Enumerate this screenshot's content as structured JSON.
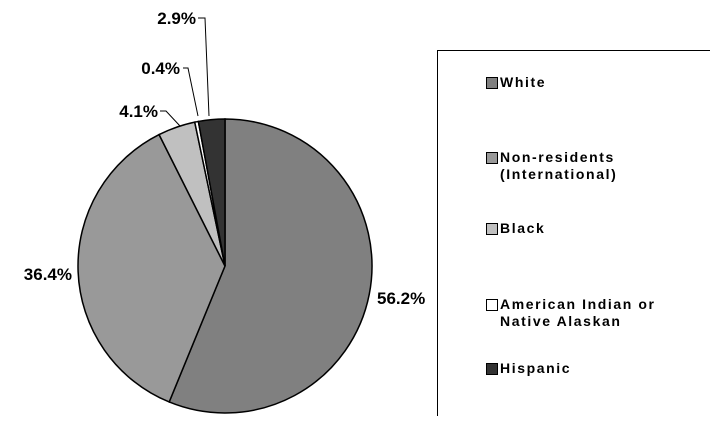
{
  "chart_data": {
    "type": "pie",
    "title": "",
    "start_angle_deg": 0,
    "direction": "clockwise",
    "slices": [
      {
        "label": "White",
        "value": 56.2,
        "display": "56.2%",
        "color": "#808080"
      },
      {
        "label": "Non-residents\n(International)",
        "value": 36.4,
        "display": "36.4%",
        "color": "#999999"
      },
      {
        "label": "Black",
        "value": 4.1,
        "display": "4.1%",
        "color": "#c0c0c0"
      },
      {
        "label": "American Indian or\nNative Alaskan",
        "value": 0.4,
        "display": "0.4%",
        "color": "#ffffff"
      },
      {
        "label": "Hispanic",
        "value": 2.9,
        "display": "2.9%",
        "color": "#333333"
      }
    ],
    "legend": {
      "position": "right"
    }
  }
}
